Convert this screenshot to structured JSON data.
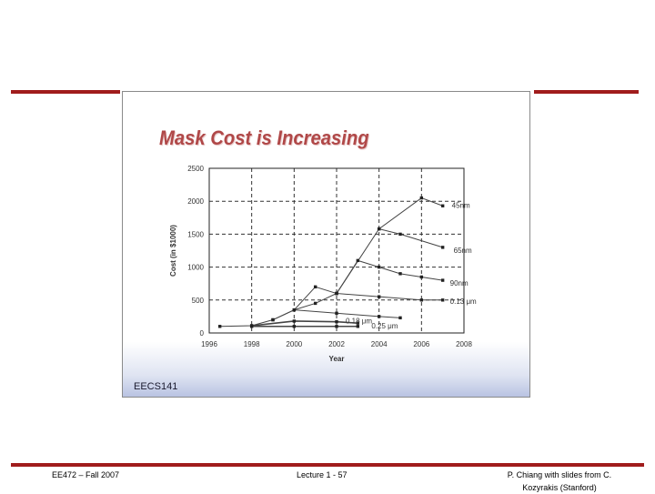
{
  "slide": {
    "title": "Mask Cost is Increasing",
    "course_code": "EECS141"
  },
  "footer": {
    "left": "EE472 – Fall 2007",
    "center": "Lecture 1 - 57",
    "right": "P. Chiang with slides from C. Kozyrakis (Stanford)"
  },
  "colors": {
    "accent_rule": "#a01c1c",
    "title": "#b04848"
  },
  "chart_data": {
    "type": "line",
    "xlabel": "Year",
    "ylabel": "Cost (in $1000)",
    "xlim": [
      1996,
      2008
    ],
    "ylim": [
      0,
      2500
    ],
    "xticks": [
      "1996",
      "1998",
      "2000",
      "2002",
      "2004",
      "2006",
      "2008"
    ],
    "yticks": [
      "0",
      "500",
      "1000",
      "1500",
      "2000",
      "2500"
    ],
    "grid": true,
    "series": [
      {
        "name": "45nm",
        "x": [
          1996.5,
          1998,
          1999,
          2000,
          2001,
          2002,
          2004,
          2006,
          2007
        ],
        "y": [
          100,
          110,
          200,
          350,
          700,
          600,
          1580,
          2050,
          1930
        ]
      },
      {
        "name": "65nm",
        "x": [
          2004,
          2005,
          2007
        ],
        "y": [
          1580,
          1500,
          1300
        ]
      },
      {
        "name": "90nm",
        "x": [
          2002,
          2003,
          2004,
          2005,
          2006,
          2007
        ],
        "y": [
          600,
          1100,
          1000,
          900,
          850,
          800
        ]
      },
      {
        "name": "0.13 μm",
        "x": [
          2000,
          2001,
          2002,
          2004,
          2006,
          2007
        ],
        "y": [
          350,
          450,
          600,
          550,
          500,
          500
        ]
      },
      {
        "name": "0.18 μm",
        "x": [
          1999,
          2000,
          2002,
          2004,
          2005
        ],
        "y": [
          200,
          350,
          300,
          250,
          230
        ]
      },
      {
        "name": "0.25 μm",
        "x": [
          1998,
          2000,
          2002,
          2003
        ],
        "y": [
          110,
          180,
          170,
          150
        ]
      },
      {
        "name": "",
        "x": [
          1998,
          2000,
          2002,
          2003
        ],
        "y": [
          100,
          100,
          100,
          100
        ]
      }
    ]
  }
}
